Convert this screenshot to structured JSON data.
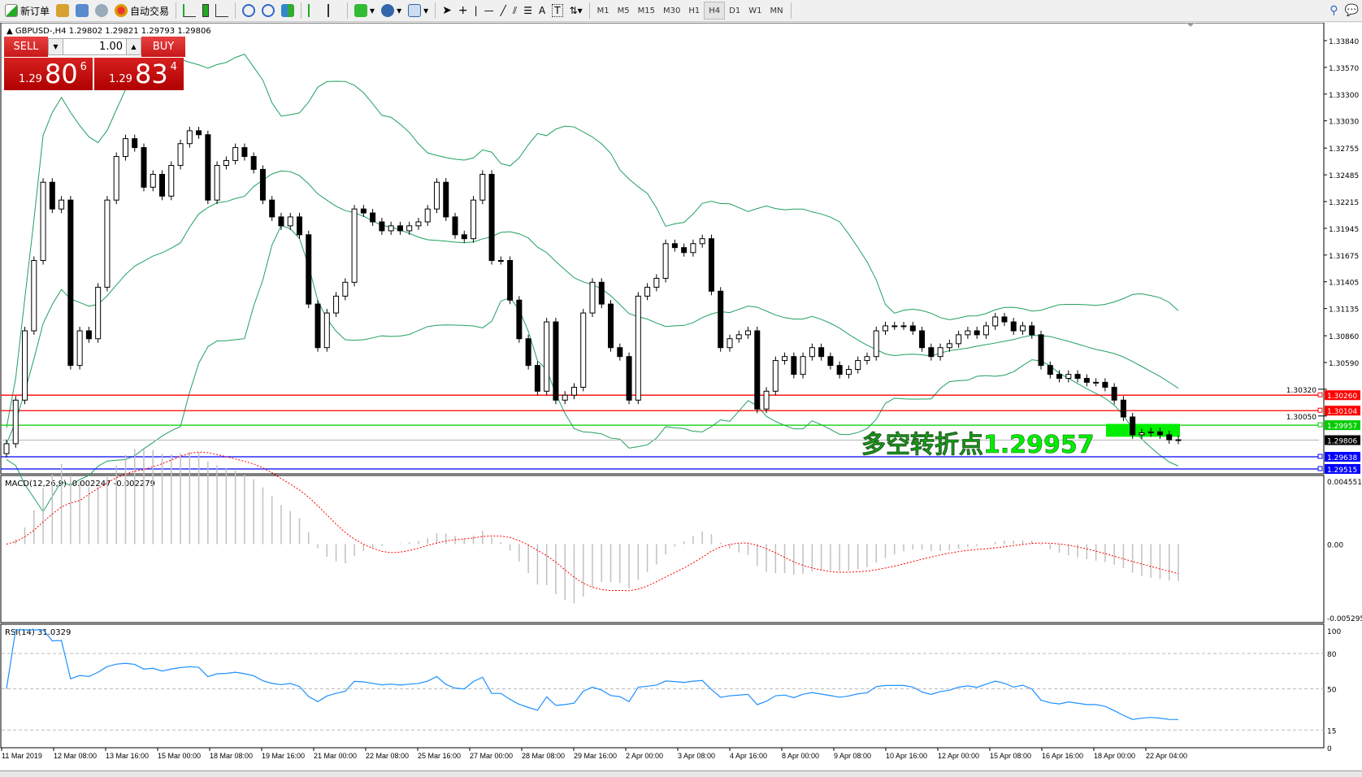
{
  "toolbar": {
    "new_order": "新订单",
    "auto_trading": "自动交易",
    "icons": [
      "new-order-icon",
      "market-watch-icon",
      "navigator-icon",
      "signals-icon",
      "auto-trading-icon",
      "bar-chart-icon",
      "candlestick-icon",
      "line-chart-icon",
      "zoom-in-icon",
      "zoom-out-icon",
      "tile-windows-icon",
      "auto-scroll-icon",
      "chart-shift-icon",
      "indicators-icon",
      "periods-icon",
      "templates-icon",
      "cursor-icon",
      "crosshair-icon",
      "vertical-line-icon",
      "horizontal-line-icon",
      "trendline-icon",
      "equidistant-channel-icon",
      "fibonacci-icon",
      "text-icon",
      "text-label-icon",
      "arrows-icon"
    ],
    "timeframes": [
      "M1",
      "M5",
      "M15",
      "M30",
      "H1",
      "H4",
      "D1",
      "W1",
      "MN"
    ],
    "active_timeframe": "H4"
  },
  "header": {
    "symbol_line": "GBPUSD-,H4  1.29802 1.29821 1.29793 1.29806"
  },
  "trade": {
    "sell": "SELL",
    "buy": "BUY",
    "lot": "1.00",
    "sell_price": {
      "a": "1.29",
      "m": "80",
      "c": "6"
    },
    "buy_price": {
      "a": "1.29",
      "m": "83",
      "c": "4"
    }
  },
  "annotation": {
    "text": "多空转折点1.29957",
    "color": "#00ee00"
  },
  "chart_data": [
    {
      "type": "candlestick",
      "name": "GBPUSD-,H4",
      "last": {
        "open": 1.29802,
        "high": 1.29821,
        "low": 1.29793,
        "close": 1.29806
      },
      "ylim": [
        1.2947,
        1.3398
      ],
      "y_ticks": [
        "1.33840",
        "1.33570",
        "1.33300",
        "1.33030",
        "1.32755",
        "1.32485",
        "1.32215",
        "1.31945",
        "1.31675",
        "1.31405",
        "1.31135",
        "1.30860",
        "1.30590",
        "1.30320",
        "1.30050"
      ],
      "x_ticks": [
        "11 Mar 2019",
        "12 Mar 08:00",
        "13 Mar 16:00",
        "15 Mar 00:00",
        "18 Mar 08:00",
        "19 Mar 16:00",
        "21 Mar 00:00",
        "22 Mar 08:00",
        "25 Mar 16:00",
        "27 Mar 00:00",
        "28 Mar 08:00",
        "29 Mar 16:00",
        "2 Apr 00:00",
        "3 Apr 08:00",
        "4 Apr 16:00",
        "8 Apr 00:00",
        "9 Apr 08:00",
        "10 Apr 16:00",
        "12 Apr 00:00",
        "15 Apr 08:00",
        "16 Apr 16:00",
        "18 Apr 00:00",
        "22 Apr 04:00"
      ],
      "close": [
        1.2977,
        1.3021,
        1.3091,
        1.3162,
        1.3241,
        1.3214,
        1.3223,
        1.3056,
        1.3091,
        1.3083,
        1.3135,
        1.3223,
        1.3267,
        1.3285,
        1.3276,
        1.3236,
        1.3249,
        1.3227,
        1.3258,
        1.328,
        1.3293,
        1.3289,
        1.3223,
        1.3258,
        1.3263,
        1.3276,
        1.3267,
        1.3254,
        1.3223,
        1.3206,
        1.3197,
        1.3206,
        1.3188,
        1.3118,
        1.3074,
        1.3109,
        1.3126,
        1.314,
        1.3214,
        1.321,
        1.3201,
        1.3192,
        1.3197,
        1.3192,
        1.3197,
        1.3201,
        1.3214,
        1.3241,
        1.3206,
        1.3188,
        1.3184,
        1.3223,
        1.3249,
        1.3162,
        1.3162,
        1.3122,
        1.3083,
        1.3056,
        1.303,
        1.31,
        1.3021,
        1.3026,
        1.3034,
        1.3109,
        1.314,
        1.3118,
        1.3074,
        1.3065,
        1.3021,
        1.3126,
        1.3135,
        1.3144,
        1.3179,
        1.3175,
        1.317,
        1.3179,
        1.3184,
        1.3131,
        1.3074,
        1.3083,
        1.3087,
        1.3091,
        1.3012,
        1.303,
        1.3061,
        1.3065,
        1.3047,
        1.3065,
        1.3074,
        1.3065,
        1.3056,
        1.3047,
        1.3052,
        1.3061,
        1.3065,
        1.3091,
        1.3096,
        1.3096,
        1.3096,
        1.3091,
        1.3074,
        1.3065,
        1.3074,
        1.3078,
        1.3087,
        1.3091,
        1.3087,
        1.3096,
        1.3105,
        1.31,
        1.3091,
        1.3096,
        1.3087,
        1.3056,
        1.3047,
        1.3043,
        1.3047,
        1.3043,
        1.3039,
        1.3039,
        1.3034,
        1.3021,
        1.3004,
        1.2986,
        1.2988,
        1.2989,
        1.2986,
        1.2981,
        1.29806
      ],
      "indicator": "Bollinger Bands",
      "levels": [
        {
          "price": "1.30260",
          "color": "#ff0000"
        },
        {
          "price": "1.30104",
          "color": "#ff0000"
        },
        {
          "price": "1.29957",
          "color": "#00cc00"
        },
        {
          "price": "1.29806",
          "color": "#000000",
          "current": true
        },
        {
          "price": "1.29638",
          "color": "#0000ff"
        },
        {
          "price": "1.29515",
          "color": "#0000ff"
        }
      ],
      "zone": {
        "from": 1.2984,
        "to": 1.2997,
        "color": "#00ee00"
      }
    },
    {
      "type": "bar",
      "name": "MACD(12,26,9) -0.002247 -0.002279",
      "ylim": [
        -0.005295,
        0.004551
      ],
      "y_ticks": [
        "0.004551",
        "0.00",
        "-0.005295"
      ],
      "hist_color": "#c0c0c0",
      "signal_color": "#ff0000"
    },
    {
      "type": "line",
      "name": "RSI(14) 31.0329",
      "ylim": [
        0,
        100
      ],
      "y_ticks": [
        "100",
        "80",
        "50",
        "15",
        "0"
      ],
      "levels": [
        80,
        50,
        15
      ],
      "color": "#1e90ff"
    }
  ]
}
